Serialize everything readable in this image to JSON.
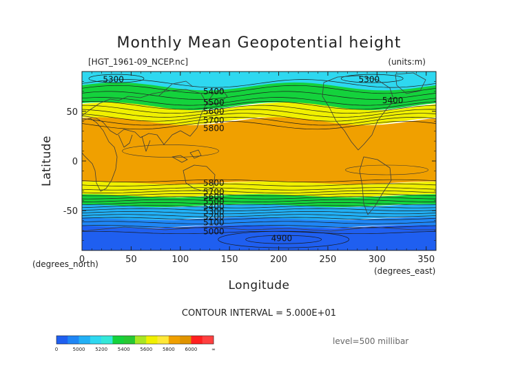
{
  "chart_data": {
    "type": "contour",
    "title": "Monthly Mean Geopotential height",
    "file_label": "[HGT_1961-09_NCEP.nc]",
    "units_label": "(units:m)",
    "xlabel": "Longitude",
    "ylabel": "Latitude",
    "x_unit_label": "(degrees_east)",
    "y_unit_label": "(degrees_north)",
    "xlim": [
      0,
      360
    ],
    "ylim": [
      -90,
      90
    ],
    "x_ticks": [
      0,
      50,
      100,
      150,
      200,
      250,
      300,
      350
    ],
    "y_ticks": [
      -50,
      0,
      50
    ],
    "contour_interval_label": "CONTOUR INTERVAL = 5.000E+01",
    "level_label": "level=500 millibar",
    "contour_labels": [
      {
        "text": "5300",
        "x": 32,
        "y": 82
      },
      {
        "text": "5300",
        "x": 292,
        "y": 82
      },
      {
        "text": "5400",
        "x": 134,
        "y": 70
      },
      {
        "text": "5400",
        "x": 316,
        "y": 61
      },
      {
        "text": "5500",
        "x": 134,
        "y": 59
      },
      {
        "text": "5600",
        "x": 134,
        "y": 50
      },
      {
        "text": "5700",
        "x": 134,
        "y": 41
      },
      {
        "text": "5800",
        "x": 134,
        "y": 33
      },
      {
        "text": "5800",
        "x": 134,
        "y": -22
      },
      {
        "text": "5700",
        "x": 134,
        "y": -31
      },
      {
        "text": "5600",
        "x": 134,
        "y": -36
      },
      {
        "text": "5500",
        "x": 134,
        "y": -41
      },
      {
        "text": "5400",
        "x": 134,
        "y": -46
      },
      {
        "text": "5300",
        "x": 134,
        "y": -51
      },
      {
        "text": "5200",
        "x": 134,
        "y": -56
      },
      {
        "text": "5100",
        "x": 134,
        "y": -62
      },
      {
        "text": "5000",
        "x": 134,
        "y": -71
      },
      {
        "text": "4900",
        "x": 203,
        "y": -78
      }
    ],
    "bands": [
      {
        "name": "north_polar",
        "value_range": [
          5200,
          5400
        ],
        "lat_range": [
          70,
          90
        ]
      },
      {
        "name": "north_green",
        "value_range": [
          5400,
          5600
        ],
        "lat_range": [
          55,
          75
        ]
      },
      {
        "name": "north_yellow",
        "value_range": [
          5600,
          5800
        ],
        "lat_range": [
          40,
          55
        ]
      },
      {
        "name": "tropics",
        "value_range": [
          5800,
          6000
        ],
        "lat_range": [
          -22,
          40
        ]
      },
      {
        "name": "south_yellow",
        "value_range": [
          5600,
          5800
        ],
        "lat_range": [
          -35,
          -22
        ]
      },
      {
        "name": "south_green",
        "value_range": [
          5400,
          5600
        ],
        "lat_range": [
          -45,
          -35
        ]
      },
      {
        "name": "south_cyan",
        "value_range": [
          5200,
          5400
        ],
        "lat_range": [
          -58,
          -45
        ]
      },
      {
        "name": "south_blue",
        "value_range": [
          5000,
          5200
        ],
        "lat_range": [
          -66,
          -58
        ]
      },
      {
        "name": "south_polar",
        "value_range": [
          4800,
          5000
        ],
        "lat_range": [
          -90,
          -66
        ]
      }
    ],
    "colorbar": {
      "colors": [
        "#1f5ff0",
        "#1f86f5",
        "#22b0f5",
        "#2ed8f0",
        "#33e8d8",
        "#14d23c",
        "#28c832",
        "#a8e623",
        "#f0f000",
        "#ffe838",
        "#f0a000",
        "#e09400",
        "#ff2020",
        "#ff4040"
      ],
      "labels": [
        "0",
        "5000",
        "5200",
        "5400",
        "5600",
        "5800",
        "6000",
        "∞"
      ]
    }
  }
}
